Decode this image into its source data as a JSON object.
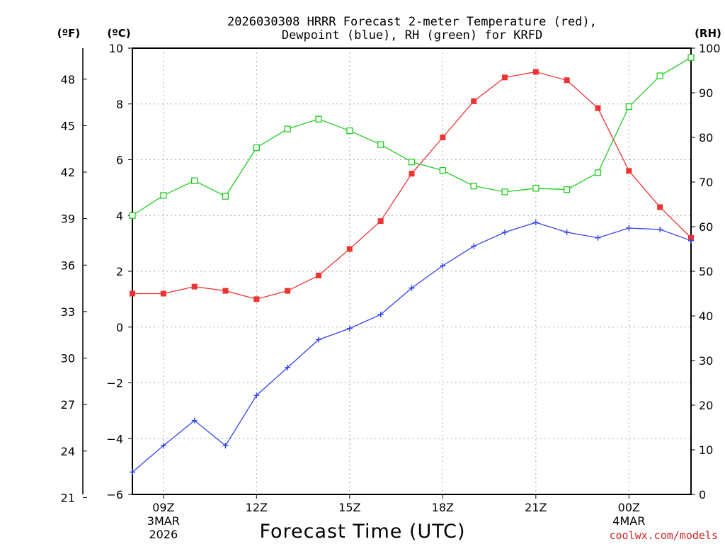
{
  "chart_data": {
    "type": "line",
    "title_line1": "2026030308 HRRR Forecast 2-meter Temperature (red),",
    "title_line2": "Dewpoint (blue), RH (green) for KRFD",
    "xlabel": "Forecast Time (UTC)",
    "watermark": "coolwx.com/models",
    "left_outer_unit": "(ºF)",
    "left_inner_unit": "(ºC)",
    "right_unit": "(RH)",
    "x_hours": [
      8,
      9,
      10,
      11,
      12,
      13,
      14,
      15,
      16,
      17,
      18,
      19,
      20,
      21,
      22,
      23,
      24,
      25,
      26
    ],
    "x_ticks": [
      {
        "hour": 9,
        "label": "09Z",
        "sub1": "3MAR",
        "sub2": "2026"
      },
      {
        "hour": 12,
        "label": "12Z",
        "sub1": "",
        "sub2": ""
      },
      {
        "hour": 15,
        "label": "15Z",
        "sub1": "",
        "sub2": ""
      },
      {
        "hour": 18,
        "label": "18Z",
        "sub1": "",
        "sub2": ""
      },
      {
        "hour": 21,
        "label": "21Z",
        "sub1": "",
        "sub2": ""
      },
      {
        "hour": 24,
        "label": "00Z",
        "sub1": "4MAR",
        "sub2": ""
      }
    ],
    "xlim": [
      8,
      26
    ],
    "celsius_ticks": [
      "10",
      "8",
      "6",
      "4",
      "2",
      "0",
      "−2",
      "−4",
      "−6"
    ],
    "celsius_tick_values": [
      10,
      8,
      6,
      4,
      2,
      0,
      -2,
      -4,
      -6
    ],
    "celsius_lim": [
      -6,
      10
    ],
    "fahrenheit_ticks": [
      "48",
      "45",
      "42",
      "39",
      "36",
      "33",
      "30",
      "27",
      "24",
      "21"
    ],
    "fahrenheit_tick_values": [
      48,
      45,
      42,
      39,
      36,
      33,
      30,
      27,
      24,
      21
    ],
    "rh_ticks": [
      "100",
      "90",
      "80",
      "70",
      "60",
      "50",
      "40",
      "30",
      "20",
      "10",
      "0"
    ],
    "rh_tick_values": [
      100,
      90,
      80,
      70,
      60,
      50,
      40,
      30,
      20,
      10,
      0
    ],
    "rh_lim": [
      0,
      100
    ],
    "series": [
      {
        "name": "2-meter Temperature",
        "unit": "C",
        "color": "#ee3333",
        "marker": "filled-square",
        "values": [
          1.2,
          1.2,
          1.45,
          1.3,
          1.0,
          1.3,
          1.85,
          2.8,
          3.8,
          5.5,
          6.8,
          8.1,
          8.95,
          9.15,
          8.85,
          7.85,
          5.6,
          4.3,
          3.2
        ]
      },
      {
        "name": "Dewpoint",
        "unit": "C",
        "color": "#3344ee",
        "marker": "plus",
        "values": [
          -5.2,
          -4.25,
          -3.35,
          -4.25,
          -2.45,
          -1.45,
          -0.45,
          -0.05,
          0.45,
          1.4,
          2.2,
          2.9,
          3.4,
          3.75,
          3.4,
          3.2,
          3.55,
          3.5,
          3.1
        ]
      },
      {
        "name": "RH",
        "unit": "%",
        "color": "#22cc22",
        "marker": "open-square",
        "values": [
          62.5,
          67,
          70.3,
          66.8,
          77.7,
          81.9,
          84.1,
          81.5,
          78.4,
          74.5,
          72.6,
          69.1,
          67.8,
          68.6,
          68.3,
          72.1,
          86.9,
          93.8,
          97.9
        ]
      }
    ]
  }
}
